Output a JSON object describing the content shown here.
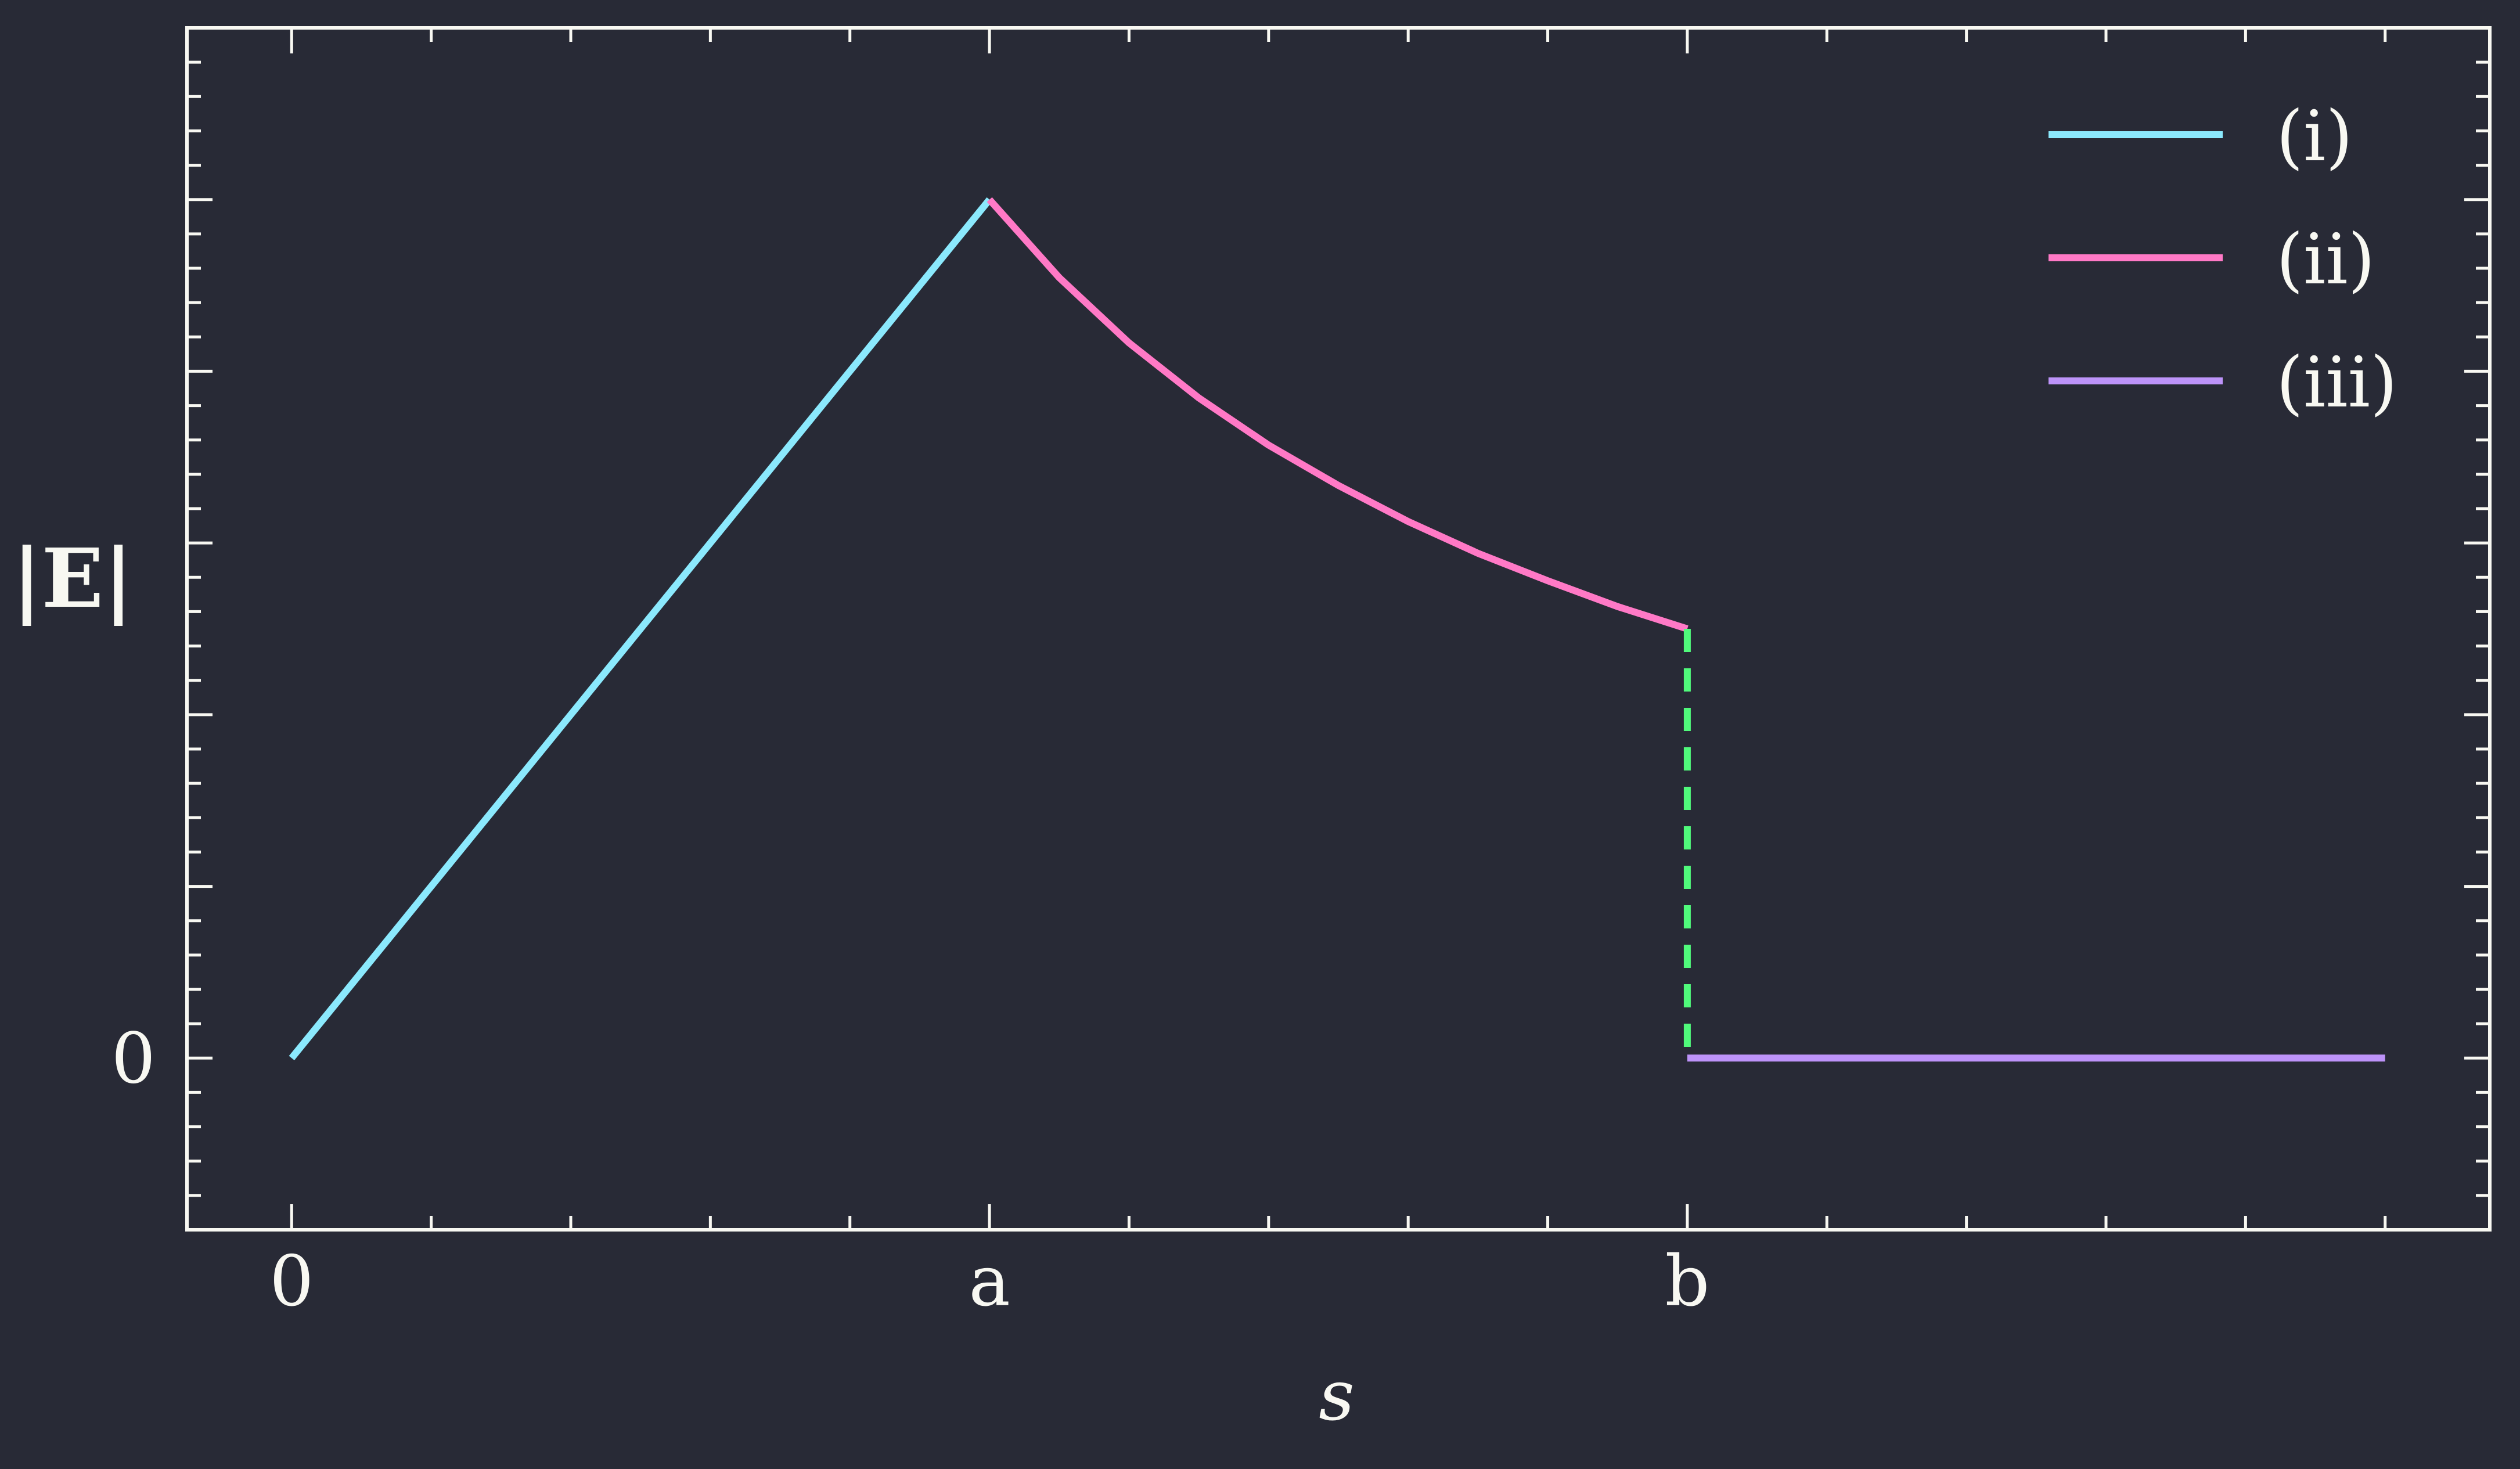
{
  "chart_data": {
    "type": "line",
    "xlabel": "s",
    "ylabel": "|E|",
    "xlim": [
      -0.15,
      3.15
    ],
    "ylim": [
      -0.2,
      1.2
    ],
    "xticks": [
      {
        "value": 0,
        "label": "0"
      },
      {
        "value": 1,
        "label": "a"
      },
      {
        "value": 2,
        "label": "b"
      }
    ],
    "yticks": [
      {
        "value": 0,
        "label": "0"
      }
    ],
    "x_minor_step": 0.2,
    "y_major_step": 0.2,
    "y_minor_step": 0.04,
    "legend_position": "top-right",
    "grid": false,
    "series": [
      {
        "name": "(i)",
        "color": "#8be9fd",
        "dash": false,
        "x": [
          0,
          0.2,
          0.4,
          0.6,
          0.8,
          1.0
        ],
        "y": [
          0,
          0.2,
          0.4,
          0.6,
          0.8,
          1.0
        ]
      },
      {
        "name": "(ii)",
        "color": "#ff79c6",
        "dash": false,
        "x": [
          1.0,
          1.1,
          1.2,
          1.3,
          1.4,
          1.5,
          1.6,
          1.7,
          1.8,
          1.9,
          2.0
        ],
        "y": [
          1.0,
          0.909,
          0.833,
          0.769,
          0.714,
          0.667,
          0.625,
          0.588,
          0.556,
          0.526,
          0.5
        ]
      },
      {
        "name": "(iii)",
        "color": "#bd93f9",
        "dash": false,
        "x": [
          2.0,
          3.0
        ],
        "y": [
          0,
          0
        ]
      },
      {
        "name": "",
        "color": "#50fa7b",
        "dash": true,
        "x": [
          2.0,
          2.0
        ],
        "y": [
          0.5,
          0
        ]
      }
    ]
  }
}
